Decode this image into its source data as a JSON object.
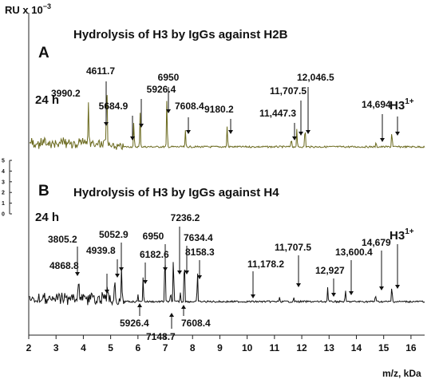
{
  "chart_data": {
    "type": "line",
    "ylabel": "RU x 10",
    "ylabel_exponent": "−3",
    "xlabel": "m/z, kDa",
    "xlim": [
      2,
      16.5
    ],
    "x_ticks": [
      "2",
      "3",
      "4",
      "5",
      "6",
      "7",
      "8",
      "9",
      "10",
      "11",
      "12",
      "13",
      "14",
      "15",
      "16"
    ],
    "y_scale_ticks": [
      "0",
      "1",
      "2",
      "3",
      "4",
      "5"
    ],
    "panels": [
      {
        "letter": "A",
        "title": "Hydrolysis of H3  by IgGs against H2B",
        "time": "24 h",
        "ion_label": "H3",
        "ion_charge": "1+",
        "trace_color": "#6b6a1e",
        "peaks": [
          {
            "label": "3990.2",
            "x": 4.19,
            "h": 0.55
          },
          {
            "label": "4611.7",
            "x": 4.86,
            "h": 0.95
          },
          {
            "label": "5684.9",
            "x": 5.85,
            "h": 0.32
          },
          {
            "label": "5926.4",
            "x": 6.08,
            "h": 0.42
          },
          {
            "label": "6950",
            "x": 7.06,
            "h": 0.62
          },
          {
            "label": "7608.4",
            "x": 7.74,
            "h": 0.2
          },
          {
            "label": "9180.2",
            "x": 9.27,
            "h": 0.28
          },
          {
            "label": "11,447.3",
            "x": 11.62,
            "h": 0.12
          },
          {
            "label": "11,707.5",
            "x": 11.82,
            "h": 0.22
          },
          {
            "label": "12,046.5",
            "x": 12.12,
            "h": 0.28
          },
          {
            "label": "14,694",
            "x": 14.72,
            "h": 0.05
          },
          {
            "label": "H3 1+",
            "x": 15.3,
            "h": 0.22
          }
        ]
      },
      {
        "letter": "B",
        "title": "Hydrolysis of H3  by IgGs against H4",
        "time": "24 h",
        "ion_label": "H3",
        "ion_charge": "1+",
        "trace_color": "#111111",
        "peaks": [
          {
            "label": "3805.2",
            "x": 3.83,
            "h": 0.28
          },
          {
            "label": "4868.8",
            "x": 4.88,
            "h": 0.2
          },
          {
            "label": "4939.8",
            "x": 5.15,
            "h": 0.32
          },
          {
            "label": "5052.9",
            "x": 5.4,
            "h": 0.45
          },
          {
            "label": "6182.6",
            "x": 6.19,
            "h": 0.32
          },
          {
            "label": "5926.4",
            "x": 6.0,
            "h": 0.1
          },
          {
            "label": "6950",
            "x": 6.99,
            "h": 0.72
          },
          {
            "label": "7148.7",
            "x": 7.2,
            "h": 0.12
          },
          {
            "label": "7236.2",
            "x": 7.3,
            "h": 0.62
          },
          {
            "label": "7608.4",
            "x": 7.55,
            "h": 0.12
          },
          {
            "label": "7634.4",
            "x": 7.7,
            "h": 0.65
          },
          {
            "label": "8158.3",
            "x": 8.18,
            "h": 0.38
          },
          {
            "label": "11,178.2",
            "x": 11.18,
            "h": 0.05
          },
          {
            "label": "11,707.5",
            "x": 11.71,
            "h": 0.05
          },
          {
            "label": "12,927",
            "x": 12.95,
            "h": 0.18
          },
          {
            "label": "13,600.4",
            "x": 13.6,
            "h": 0.14
          },
          {
            "label": "14,679",
            "x": 14.7,
            "h": 0.1
          },
          {
            "label": "H3 1+",
            "x": 15.3,
            "h": 0.22
          }
        ]
      }
    ]
  }
}
